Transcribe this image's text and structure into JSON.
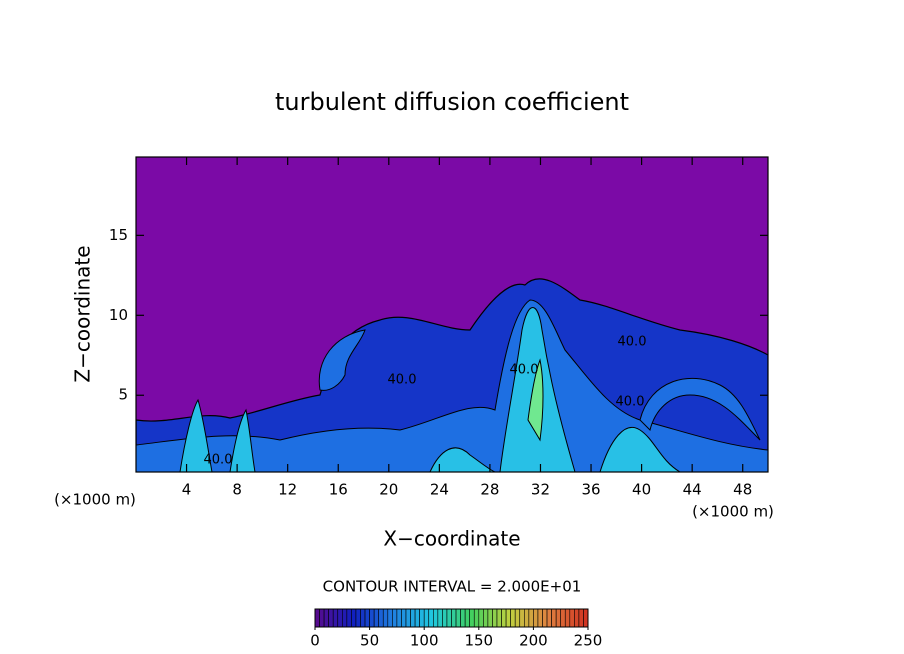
{
  "chart_data": {
    "type": "contour",
    "title": "turbulent diffusion coefficient",
    "x_label": "X−coordinate",
    "y_label": "Z−coordinate",
    "x_unit": "(×1000 m)",
    "xlim": [
      0,
      50
    ],
    "xticks": [
      4,
      8,
      12,
      16,
      20,
      24,
      28,
      32,
      36,
      40,
      44,
      48
    ],
    "ylim": [
      0.2,
      19.9
    ],
    "yticks": [
      5,
      10,
      15
    ],
    "contour_interval": "CONTOUR INTERVAL = 2.000E+01",
    "contour_labels": [
      "40.0",
      "40.0",
      "40.0",
      "40.0",
      "40.0"
    ],
    "colorbar": {
      "lim": [
        0,
        250
      ],
      "ticks": [
        0,
        50,
        100,
        150,
        200,
        250
      ],
      "colors": [
        "#5a0a8c",
        "#1020c0",
        "#2080e0",
        "#20c8e0",
        "#40d060",
        "#c0d040",
        "#e08040",
        "#d03020"
      ]
    },
    "background_color": "#7b0aa6"
  }
}
